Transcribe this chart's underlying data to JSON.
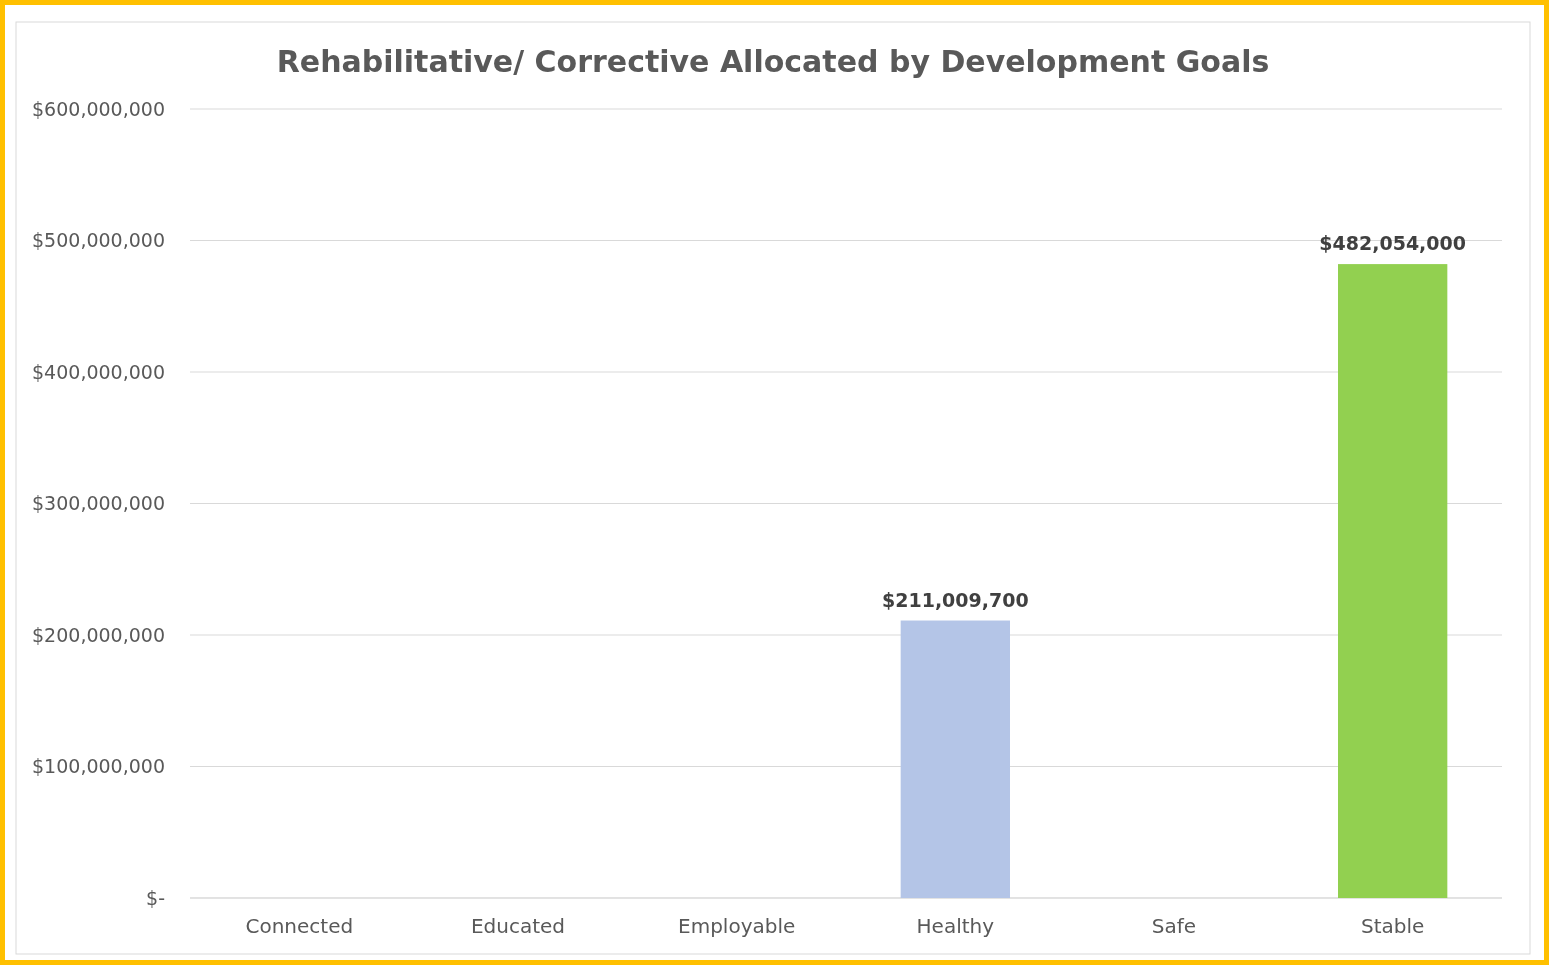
{
  "chart_data": {
    "type": "bar",
    "title": "Rehabilitative/ Corrective Allocated by Development Goals",
    "categories": [
      "Connected",
      "Educated",
      "Employable",
      "Healthy",
      "Safe",
      "Stable"
    ],
    "values": [
      null,
      null,
      null,
      211009700,
      null,
      482054000
    ],
    "colors": [
      null,
      null,
      null,
      "#b4c5e7",
      null,
      "#92d050"
    ],
    "value_labels": [
      null,
      null,
      null,
      "$211,009,700",
      null,
      "$482,054,000"
    ],
    "ylim": [
      0,
      600000000
    ],
    "yticks": [
      {
        "value": 0,
        "label": "$-"
      },
      {
        "value": 100000000,
        "label": "$100,000,000"
      },
      {
        "value": 200000000,
        "label": "$200,000,000"
      },
      {
        "value": 300000000,
        "label": "$300,000,000"
      },
      {
        "value": 400000000,
        "label": "$400,000,000"
      },
      {
        "value": 500000000,
        "label": "$500,000,000"
      },
      {
        "value": 600000000,
        "label": "$600,000,000"
      }
    ],
    "grid": "y"
  }
}
